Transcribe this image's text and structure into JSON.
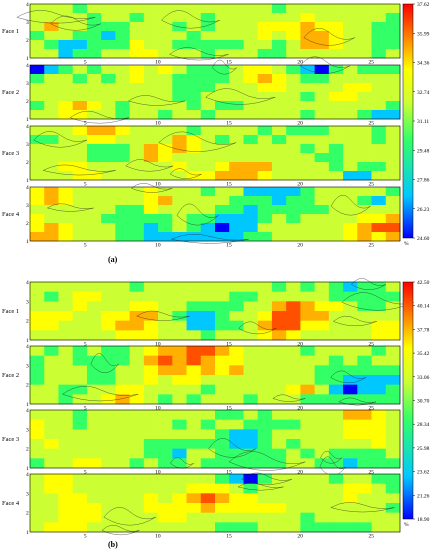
{
  "chart_data": [
    {
      "type": "heatmap",
      "label": "(a)",
      "label_letter": "a",
      "x_ticks": [
        5,
        10,
        15,
        20,
        25
      ],
      "y_ticks": [
        1,
        2,
        3,
        4
      ],
      "xlim": [
        1,
        27
      ],
      "ylim": [
        1,
        4
      ],
      "faces": [
        "Face 1",
        "Face 2",
        "Face 3",
        "Face 4"
      ],
      "colorbar": {
        "ticks": [
          "37.62",
          "35.99",
          "34.36",
          "32.74",
          "31.11",
          "29.48",
          "27.86",
          "26.23",
          "24.60"
        ],
        "unit": "%",
        "range": [
          24.6,
          37.62
        ]
      },
      "colors": [
        "#0000ff",
        "#00c8ff",
        "#33ff66",
        "#ccff33",
        "#ffff00",
        "#ffb000",
        "#ff5000",
        "#ff0000"
      ]
    },
    {
      "type": "heatmap",
      "label": "(b)",
      "label_letter": "b",
      "x_ticks": [
        5,
        10,
        15,
        20,
        25
      ],
      "y_ticks": [
        1,
        2,
        3,
        4
      ],
      "xlim": [
        1,
        27
      ],
      "ylim": [
        1,
        4
      ],
      "faces": [
        "Face 1",
        "Face 2",
        "Face 3",
        "Face 4"
      ],
      "colorbar": {
        "ticks": [
          "42.50",
          "40.14",
          "37.78",
          "35.42",
          "33.06",
          "30.70",
          "28.34",
          "25.98",
          "23.62",
          "21.26",
          "18.90"
        ],
        "unit": "%",
        "range": [
          18.9,
          42.5
        ]
      },
      "colors": [
        "#0000ff",
        "#00c8ff",
        "#33ff66",
        "#ccff33",
        "#ffff00",
        "#ffb000",
        "#ff5000",
        "#ff0000"
      ]
    }
  ]
}
